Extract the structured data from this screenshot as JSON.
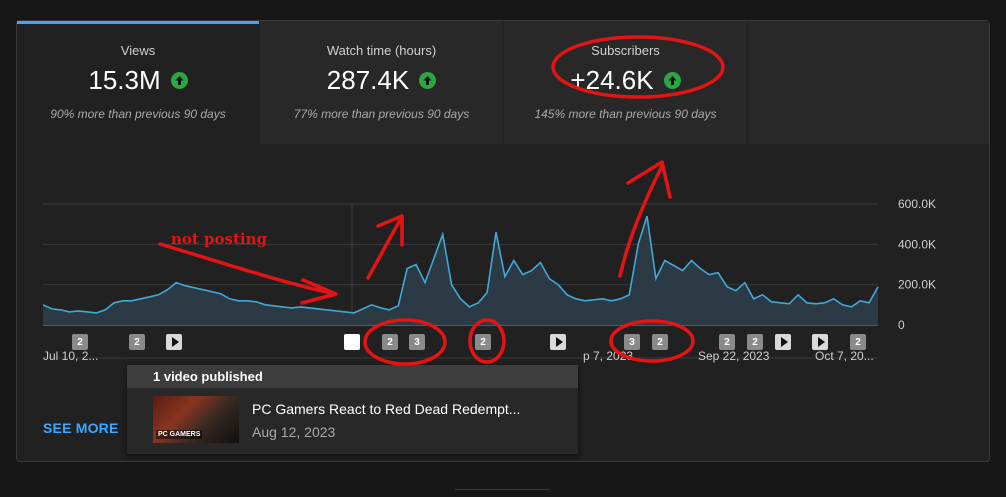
{
  "tabs": [
    {
      "label": "Views",
      "value": "15.3M",
      "sub": "90% more than previous 90 days",
      "trend": "up-arrow-icon"
    },
    {
      "label": "Watch time (hours)",
      "value": "287.4K",
      "sub": "77% more than previous 90 days",
      "trend": "up-arrow-icon"
    },
    {
      "label": "Subscribers",
      "value": "+24.6K",
      "sub": "145% more than previous 90 days",
      "trend": "up-arrow-icon"
    }
  ],
  "chart_data": {
    "type": "area",
    "y_ticks": [
      "600.0K",
      "400.0K",
      "200.0K",
      "0"
    ],
    "ylim": [
      0,
      600000
    ],
    "x_tick_labels": [
      "Jul 10, 2...",
      "p 7, 2023",
      "Sep 22, 2023",
      "Oct 7, 20..."
    ],
    "grid": true,
    "series": [
      {
        "values": [
          100000,
          80000,
          75000,
          65000,
          70000,
          65000,
          60000,
          75000,
          110000,
          120000,
          120000,
          130000,
          140000,
          150000,
          175000,
          210000,
          195000,
          185000,
          175000,
          165000,
          155000,
          130000,
          120000,
          120000,
          115000,
          100000,
          95000,
          90000,
          85000,
          90000,
          85000,
          80000,
          75000,
          70000,
          65000,
          60000,
          80000,
          100000,
          85000,
          75000,
          95000,
          280000,
          300000,
          210000,
          330000,
          450000,
          200000,
          130000,
          90000,
          110000,
          160000,
          460000,
          240000,
          320000,
          250000,
          270000,
          310000,
          230000,
          200000,
          150000,
          130000,
          120000,
          125000,
          130000,
          120000,
          130000,
          150000,
          400000,
          540000,
          230000,
          320000,
          295000,
          270000,
          320000,
          280000,
          250000,
          260000,
          190000,
          170000,
          210000,
          130000,
          150000,
          115000,
          110000,
          105000,
          150000,
          110000,
          105000,
          110000,
          130000,
          100000,
          90000,
          120000,
          110000,
          190000
        ]
      }
    ]
  },
  "markers": [
    "2",
    "2",
    "play",
    "selected",
    "2",
    "3",
    "2",
    "play",
    "3",
    "2",
    "2",
    "2",
    "play",
    "play",
    "2"
  ],
  "tooltip": {
    "heading": "1 video published",
    "title": "PC Gamers React to Red Dead Redempt...",
    "date": "Aug 12, 2023",
    "thumb_label": "PC GAMERS"
  },
  "see_more": "SEE MORE",
  "annotation": {
    "text": "not posting",
    "color": "#e51414"
  },
  "colors": {
    "accent": "#3ea6ff",
    "line": "#41a9d8",
    "area": "#2b3a44",
    "up": "#2ba640",
    "annotation": "#e51414"
  }
}
